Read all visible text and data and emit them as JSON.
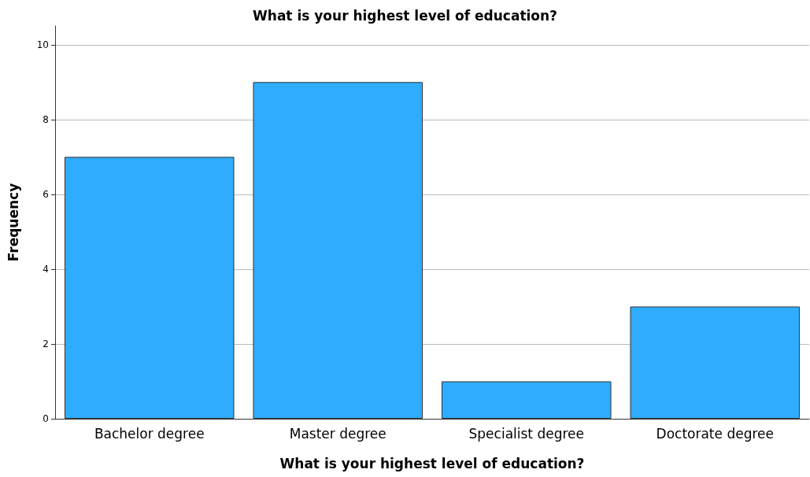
{
  "chart_data": {
    "type": "bar",
    "title": "What is your highest level of education?",
    "xlabel": "What is your highest level of education?",
    "ylabel": "Frequency",
    "categories": [
      "Bachelor degree",
      "Master degree",
      "Specialist degree",
      "Doctorate degree"
    ],
    "values": [
      7,
      9,
      1,
      3
    ],
    "color": "#30acfe",
    "ylim": [
      0,
      10.5
    ],
    "yticks": [
      0,
      2,
      4,
      6,
      8,
      10
    ],
    "grid": "y"
  }
}
